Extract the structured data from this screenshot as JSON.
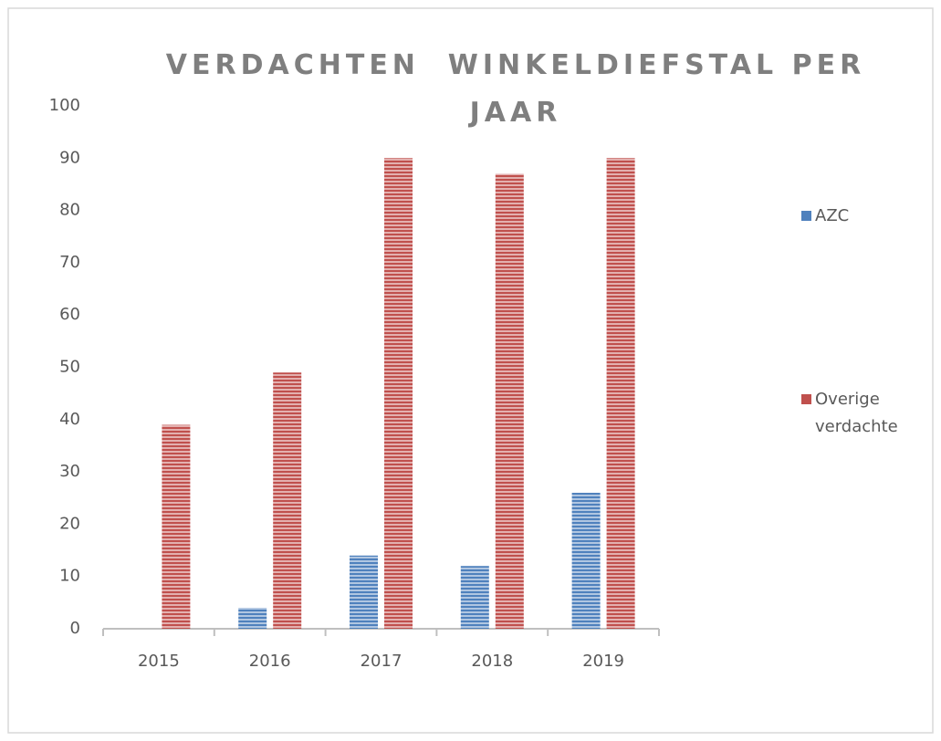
{
  "chart_data": {
    "type": "bar",
    "title": "VERDACHTEN  WINKELDIEFSTAL PER JAAR",
    "categories": [
      "2015",
      "2016",
      "2017",
      "2018",
      "2019"
    ],
    "series": [
      {
        "name": "AZC",
        "color": "#4f81bd",
        "values": [
          0,
          4,
          14,
          12,
          26
        ]
      },
      {
        "name": "Overige verdachte",
        "color": "#c0504d",
        "values": [
          39,
          49,
          90,
          87,
          90
        ]
      }
    ],
    "ylim": [
      0,
      100
    ],
    "yticks": [
      0,
      10,
      20,
      30,
      40,
      50,
      60,
      70,
      80,
      90,
      100
    ],
    "grid": false,
    "legend": "right"
  }
}
